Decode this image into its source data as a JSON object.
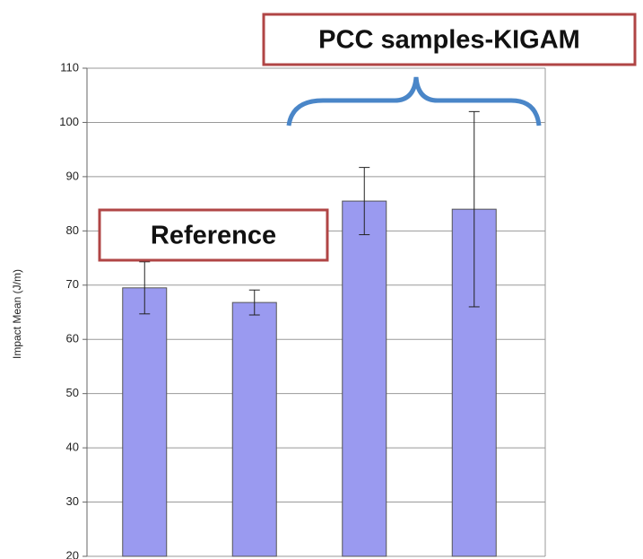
{
  "chart_data": {
    "type": "bar",
    "y_label": "Impact Mean (J/m)",
    "annotations": [
      "PCC samples-KIGAM",
      "Reference"
    ],
    "categories": [
      null,
      null,
      null,
      null
    ],
    "values": [
      69.5,
      66.8,
      85.5,
      84
    ],
    "errors": [
      4.8,
      2.3,
      6.2,
      18
    ],
    "color": "#9a9af0",
    "ylim": [
      20,
      110
    ],
    "yticks": [
      20,
      30,
      40,
      50,
      60,
      70,
      80,
      90,
      100,
      110
    ],
    "grid": true
  }
}
